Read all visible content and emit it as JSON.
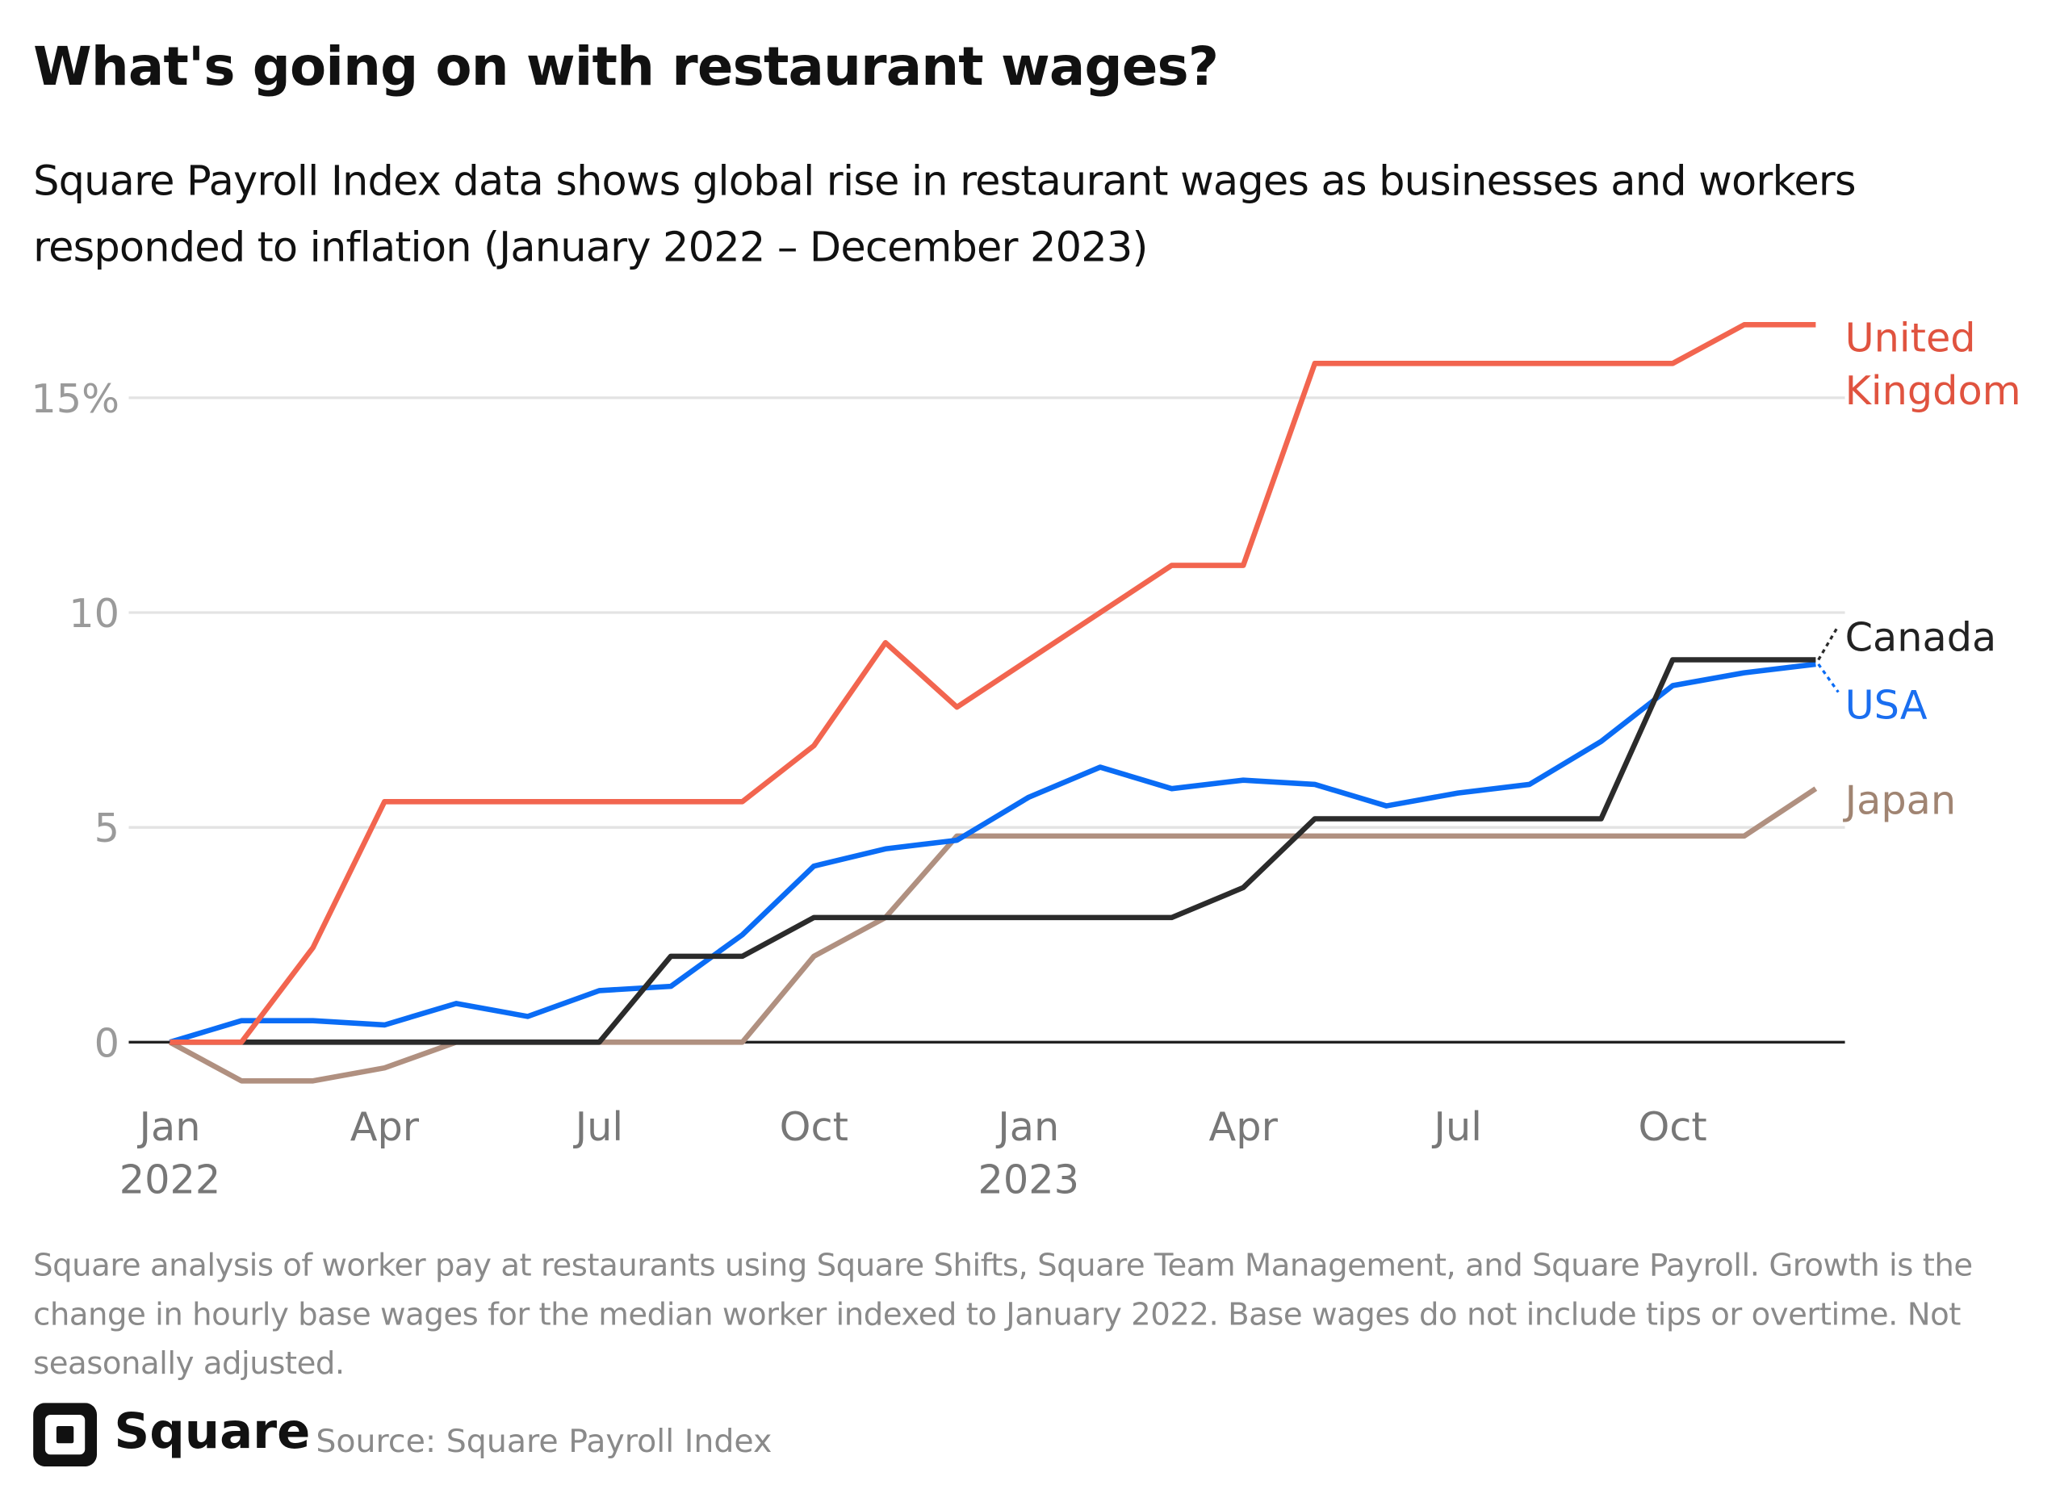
{
  "chart_data": {
    "type": "line",
    "title": "What's going on with restaurant wages?",
    "subtitle": "Square Payroll Index data shows global rise in restaurant wages as businesses and workers responded to inflation (January 2022 – December 2023)",
    "categories": [
      "Jan 2022",
      null,
      null,
      "Apr",
      null,
      null,
      "Jul",
      null,
      null,
      "Oct",
      null,
      null,
      "Jan 2023",
      null,
      null,
      "Apr",
      null,
      null,
      "Jul",
      null,
      null,
      "Oct",
      null,
      null
    ],
    "series": [
      {
        "name": "United Kingdom",
        "color": "#f2654f",
        "label_color": "#e0533f",
        "values": [
          0,
          0,
          2.2,
          5.6,
          5.6,
          5.6,
          5.6,
          5.6,
          5.6,
          6.9,
          9.3,
          7.8,
          8.9,
          10.0,
          11.1,
          11.1,
          15.8,
          15.8,
          15.8,
          15.8,
          15.8,
          15.8,
          16.7,
          16.7
        ]
      },
      {
        "name": "Canada",
        "color": "#2b2b2b",
        "label_color": "#222222",
        "values": [
          0,
          0,
          0,
          0,
          0,
          0,
          0,
          2.0,
          2.0,
          2.9,
          2.9,
          2.9,
          2.9,
          2.9,
          2.9,
          3.6,
          5.2,
          5.2,
          5.2,
          5.2,
          5.2,
          8.9,
          8.9,
          8.9
        ]
      },
      {
        "name": "USA",
        "color": "#0a6cf5",
        "label_color": "#1a6ef0",
        "values": [
          0,
          0.5,
          0.5,
          0.4,
          0.9,
          0.6,
          1.2,
          1.3,
          2.5,
          4.1,
          4.5,
          4.7,
          5.7,
          6.4,
          5.9,
          6.1,
          6.0,
          5.5,
          5.8,
          6.0,
          7.0,
          8.3,
          8.6,
          8.8
        ]
      },
      {
        "name": "Japan",
        "color": "#b09080",
        "label_color": "#a08472",
        "values": [
          0,
          -0.9,
          -0.9,
          -0.6,
          0,
          0,
          0,
          0,
          0,
          2.0,
          2.9,
          4.8,
          4.8,
          4.8,
          4.8,
          4.8,
          4.8,
          4.8,
          4.8,
          4.8,
          4.8,
          4.8,
          4.8,
          5.9
        ]
      }
    ],
    "ylim": [
      -1,
      17
    ],
    "yticks": [
      0,
      5,
      10,
      {
        "value": 15,
        "label": "15%"
      }
    ],
    "grid": true,
    "note": "Square analysis of worker pay at restaurants using Square Shifts, Square Team Management, and Square Payroll. Growth is the change in hourly base wages for the median worker indexed to January 2022. Base wages do not include tips or overtime. Not seasonally adjusted.",
    "brand": "Square",
    "source": "Source: Square Payroll Index"
  }
}
